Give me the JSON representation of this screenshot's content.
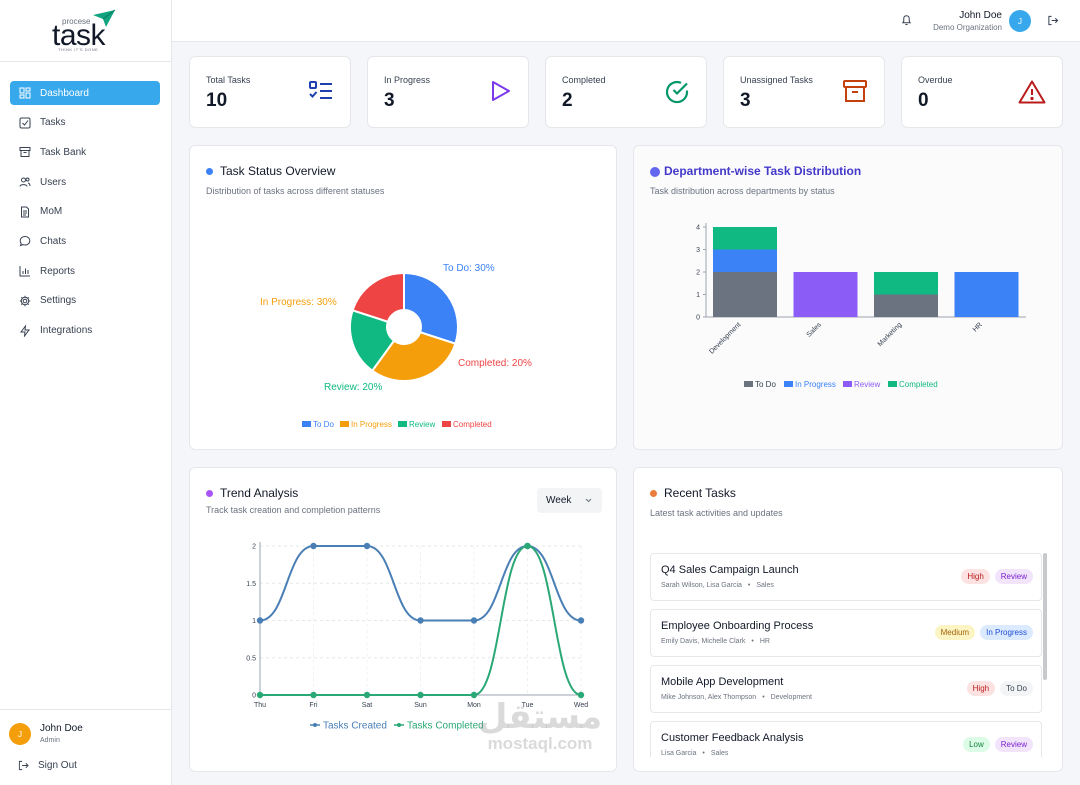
{
  "brand": {
    "small": "procese",
    "name": "task",
    "tagline": "THINK IT'S DONE"
  },
  "sidebar": {
    "items": [
      {
        "label": "Dashboard",
        "icon": "dashboard-icon",
        "active": true
      },
      {
        "label": "Tasks",
        "icon": "checkbox-icon"
      },
      {
        "label": "Task Bank",
        "icon": "archive-icon"
      },
      {
        "label": "Users",
        "icon": "users-icon"
      },
      {
        "label": "MoM",
        "icon": "document-icon"
      },
      {
        "label": "Chats",
        "icon": "chat-icon"
      },
      {
        "label": "Reports",
        "icon": "bar-chart-icon"
      },
      {
        "label": "Settings",
        "icon": "gear-icon"
      },
      {
        "label": "Integrations",
        "icon": "integrations-icon"
      }
    ],
    "user": {
      "initial": "J",
      "name": "John Doe",
      "role": "Admin"
    },
    "signout": "Sign Out"
  },
  "topbar": {
    "user_name": "John Doe",
    "org": "Demo Organization",
    "initial": "J"
  },
  "stats": [
    {
      "label": "Total Tasks",
      "value": "10",
      "icon": "list-check-icon",
      "color": "#1e40af"
    },
    {
      "label": "In Progress",
      "value": "3",
      "icon": "play-icon",
      "color": "#7c3aed"
    },
    {
      "label": "Completed",
      "value": "2",
      "icon": "check-circle-icon",
      "color": "#059669"
    },
    {
      "label": "Unassigned Tasks",
      "value": "3",
      "icon": "archive-icon",
      "color": "#c2410c"
    },
    {
      "label": "Overdue",
      "value": "0",
      "icon": "warning-icon",
      "color": "#b91c1c"
    }
  ],
  "status_overview": {
    "title": "Task Status Overview",
    "subtitle": "Distribution of tasks across different statuses",
    "dot_color": "#3b82f6"
  },
  "department": {
    "title": "Department-wise Task Distribution",
    "subtitle": "Task distribution across departments by status",
    "dot_color": "#6366f1"
  },
  "trend": {
    "title": "Trend Analysis",
    "subtitle": "Track task creation and completion patterns",
    "dot_color": "#a855f7",
    "period": "Week"
  },
  "recent": {
    "title": "Recent Tasks",
    "subtitle": "Latest task activities and updates",
    "dot_color": "#ea7c3c",
    "tasks": [
      {
        "title": "Q4 Sales Campaign Launch",
        "assignees": "Sarah Wilson, Lisa Garcia",
        "dept": "Sales",
        "priority": "High",
        "status": "Review"
      },
      {
        "title": "Employee Onboarding Process",
        "assignees": "Emily Davis, Michelle Clark",
        "dept": "HR",
        "priority": "Medium",
        "status": "In Progress"
      },
      {
        "title": "Mobile App Development",
        "assignees": "Mike Johnson, Alex Thompson",
        "dept": "Development",
        "priority": "High",
        "status": "To Do"
      },
      {
        "title": "Customer Feedback Analysis",
        "assignees": "Lisa Garcia",
        "dept": "Sales",
        "priority": "Low",
        "status": "Review"
      }
    ]
  },
  "watermark": {
    "arabic": "مستقل",
    "latin": "mostaql.com"
  },
  "chart_data": [
    {
      "type": "pie",
      "categories": [
        "To Do",
        "In Progress",
        "Review",
        "Completed"
      ],
      "values": [
        30,
        30,
        20,
        20
      ],
      "labels": [
        "To Do: 30%",
        "In Progress: 30%",
        "Review: 20%",
        "Completed: 20%"
      ],
      "colors": [
        "#3b82f6",
        "#f59e0b",
        "#10b981",
        "#ef4444"
      ],
      "legend": "bottom"
    },
    {
      "type": "bar",
      "stacked": true,
      "categories": [
        "Development",
        "Sales",
        "Marketing",
        "HR"
      ],
      "series": [
        {
          "name": "To Do",
          "values": [
            2,
            0,
            1,
            0
          ],
          "color": "#6b7280"
        },
        {
          "name": "In Progress",
          "values": [
            1,
            0,
            0,
            2
          ],
          "color": "#3b82f6"
        },
        {
          "name": "Review",
          "values": [
            0,
            2,
            0,
            0
          ],
          "color": "#8b5cf6"
        },
        {
          "name": "Completed",
          "values": [
            1,
            0,
            1,
            0
          ],
          "color": "#10b981"
        }
      ],
      "ylim": [
        0,
        4
      ],
      "yticks": [
        "0",
        "1",
        "2",
        "3",
        "4"
      ],
      "legend": "bottom"
    },
    {
      "type": "line",
      "x": [
        "Thu",
        "Fri",
        "Sat",
        "Sun",
        "Mon",
        "Tue",
        "Wed"
      ],
      "series": [
        {
          "name": "Tasks Created",
          "values": [
            1,
            2,
            2,
            1,
            1,
            2,
            1
          ],
          "color": "#4a7fb5"
        },
        {
          "name": "Tasks Completed",
          "values": [
            0,
            0,
            0,
            0,
            0,
            2,
            0
          ],
          "color": "#2aa876"
        }
      ],
      "ylim": [
        0,
        2
      ],
      "yticks": [
        "0",
        "0.5",
        "1",
        "1.5",
        "2"
      ],
      "grid": true,
      "legend": "bottom"
    }
  ]
}
